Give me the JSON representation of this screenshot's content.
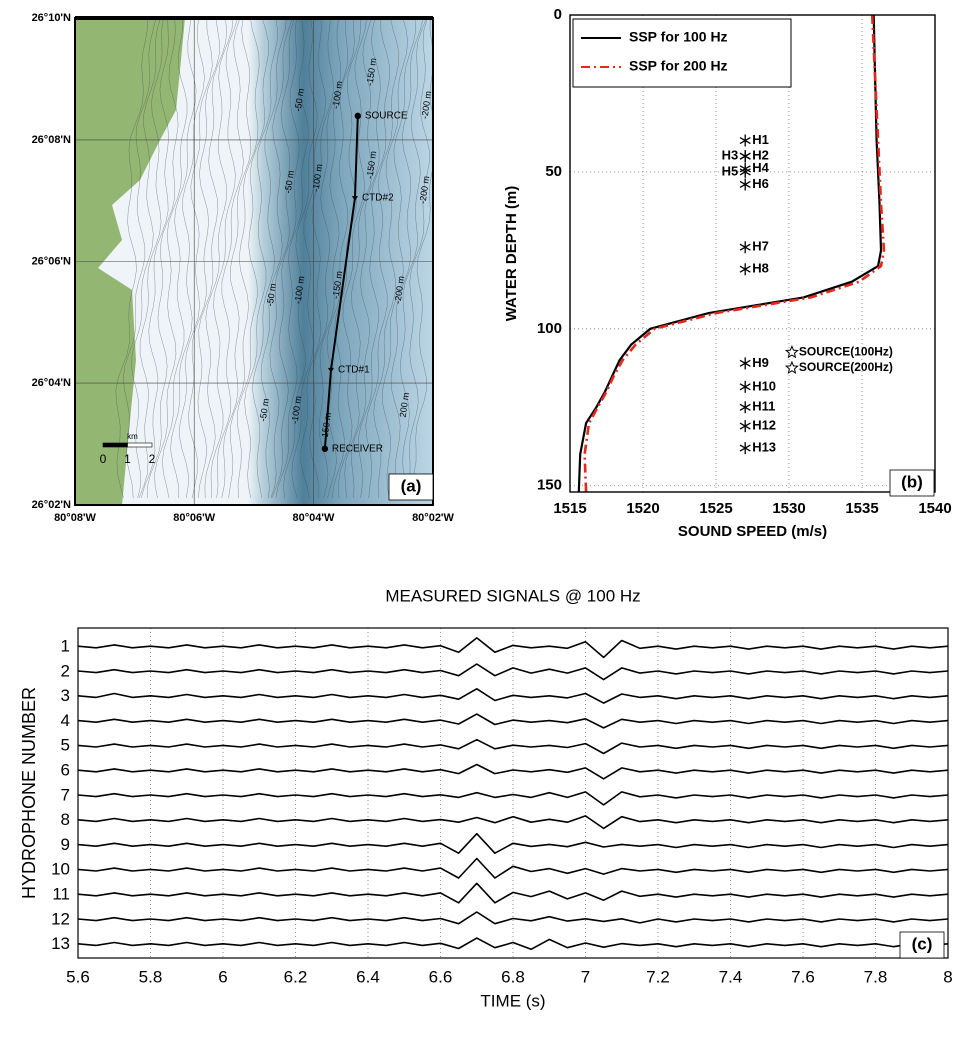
{
  "chart_data": [
    {
      "type": "map",
      "xlim": [
        -80.1333,
        -80.0333
      ],
      "ylim": [
        26.0333,
        26.1667
      ],
      "xticks": [
        {
          "value": -80.1333,
          "label": "80°08'W"
        },
        {
          "value": -80.1,
          "label": "80°06'W"
        },
        {
          "value": -80.0667,
          "label": "80°04'W"
        },
        {
          "value": -80.0333,
          "label": "80°02'W"
        }
      ],
      "yticks": [
        {
          "value": 26.1667,
          "label": "26°10'N"
        },
        {
          "value": 26.1333,
          "label": "26°08'N"
        },
        {
          "value": 26.1,
          "label": "26°06'N"
        },
        {
          "value": 26.0667,
          "label": "26°04'N"
        },
        {
          "value": 26.0333,
          "label": "26°02'N"
        }
      ],
      "grid": true,
      "points": {
        "labels": [
          "SOURCE",
          "CTD#2",
          "CTD#1",
          "RECEIVER"
        ],
        "markers": [
          "circle",
          "triangle",
          "triangle",
          "circle"
        ],
        "x": [
          -80.0543,
          -80.0551,
          -80.0618,
          -80.0635
        ],
        "values": [
          26.1399,
          26.1174,
          26.0703,
          26.0487
        ]
      },
      "contour_labels": [
        "-50 m",
        "-100 m",
        "-150 m",
        "-200 m",
        "-50 m",
        "-100 m",
        "-150 m",
        "-200 m",
        "-50 m",
        "-100 m",
        "-150 m",
        "-200 m",
        "-50 m",
        "-100 m",
        "150 m",
        "200 m"
      ],
      "scale_unit": "km",
      "scale_ticks": [
        0,
        1,
        2
      ],
      "panel_label": "(a)"
    },
    {
      "type": "line",
      "xlabel": "SOUND SPEED (m/s)",
      "ylabel": "WATER DEPTH (m)",
      "xlim": [
        1515,
        1540
      ],
      "xticks": [
        1515,
        1520,
        1525,
        1530,
        1535,
        1540
      ],
      "ylim": [
        0,
        152
      ],
      "yticks": [
        0,
        50,
        100,
        150
      ],
      "y_inverted": true,
      "grid": true,
      "legend": "upper-left",
      "y": [
        0,
        20,
        40,
        60,
        75,
        80,
        85,
        90,
        95,
        100,
        105,
        110,
        115,
        120,
        125,
        130,
        140,
        152
      ],
      "series": [
        {
          "name": "SSP for 100 Hz",
          "color": "#000000",
          "dash": "solid",
          "values": [
            1535.8,
            1535.9,
            1536.0,
            1536.2,
            1536.3,
            1536.1,
            1534.3,
            1531.0,
            1524.5,
            1520.5,
            1519.2,
            1518.4,
            1517.9,
            1517.4,
            1516.8,
            1516.1,
            1515.7,
            1515.6
          ]
        },
        {
          "name": "SSP for 200 Hz",
          "color": "#e8261b",
          "dash": "dashdot",
          "values": [
            1535.7,
            1535.9,
            1536.1,
            1536.3,
            1536.5,
            1536.3,
            1534.8,
            1531.5,
            1525.0,
            1520.8,
            1519.5,
            1518.6,
            1518.0,
            1517.5,
            1516.9,
            1516.3,
            1516.0,
            1516.1
          ]
        }
      ],
      "hydrophones": {
        "labels": [
          "H1",
          "H2",
          "H3",
          "H4",
          "H5",
          "H6",
          "H7",
          "H8",
          "H9",
          "H10",
          "H11",
          "H12",
          "H13"
        ],
        "values": [
          1527,
          1527,
          1527,
          1527,
          1527,
          1527,
          1527,
          1527,
          1527,
          1527,
          1527,
          1527,
          1527
        ],
        "y": [
          40,
          45,
          45,
          49,
          50,
          54,
          74,
          81,
          111,
          118.5,
          125,
          131,
          138
        ]
      },
      "sources": {
        "labels": [
          "SOURCE(100Hz)",
          "SOURCE(200Hz)"
        ],
        "values": [
          1530.2,
          1530.2
        ],
        "y": [
          107.5,
          112.5
        ]
      },
      "panel_label": "(b)"
    },
    {
      "type": "waveform",
      "title": "MEASURED SIGNALS @ 100 Hz",
      "xlabel": "TIME (s)",
      "ylabel": "HYDROPHONE NUMBER",
      "xlim": [
        5.6,
        8
      ],
      "xticks": [
        5.6,
        5.8,
        6,
        6.2,
        6.4,
        6.6,
        6.8,
        7,
        7.2,
        7.4,
        7.6,
        7.8,
        8
      ],
      "grid": true,
      "color": "#000000",
      "categories": [
        "1",
        "2",
        "3",
        "4",
        "5",
        "6",
        "7",
        "8",
        "9",
        "10",
        "11",
        "12",
        "13"
      ],
      "x": [
        5.6,
        5.65,
        5.7,
        5.75,
        5.8,
        5.85,
        5.9,
        5.95,
        6,
        6.05,
        6.1,
        6.15,
        6.2,
        6.25,
        6.3,
        6.35,
        6.4,
        6.45,
        6.5,
        6.55,
        6.6,
        6.65,
        6.7,
        6.75,
        6.8,
        6.85,
        6.9,
        6.95,
        7,
        7.05,
        7.1,
        7.15,
        7.2,
        7.25,
        7.3,
        7.35,
        7.4,
        7.45,
        7.5,
        7.55,
        7.6,
        7.65,
        7.7,
        7.75,
        7.8,
        7.85,
        7.9,
        7.95,
        8
      ],
      "series": [
        {
          "values": [
            0.03,
            0.03,
            0.08,
            0.03,
            0.03,
            0.03,
            0.08,
            0.03,
            0.03,
            0.03,
            0.08,
            0.03,
            0.03,
            0.03,
            0.08,
            0.03,
            0.03,
            0.03,
            0.08,
            0.03,
            0.05,
            0.2,
            0.35,
            0.2,
            0.06,
            0.03,
            0.03,
            0.05,
            0.2,
            0.4,
            0.25,
            0.05,
            0.03,
            0.08,
            0.03,
            0.03,
            0.03,
            0.08,
            0.03,
            0.03,
            0.03,
            0.08,
            0.03,
            0.03,
            0.03,
            0.08,
            0.03,
            0.03,
            0.03
          ]
        },
        {
          "values": [
            0.03,
            0.03,
            0.08,
            0.03,
            0.03,
            0.03,
            0.08,
            0.03,
            0.03,
            0.03,
            0.08,
            0.03,
            0.03,
            0.03,
            0.08,
            0.03,
            0.03,
            0.03,
            0.08,
            0.03,
            0.05,
            0.15,
            0.3,
            0.15,
            0.15,
            0.05,
            0.1,
            0.05,
            0.15,
            0.3,
            0.15,
            0.05,
            0.03,
            0.08,
            0.03,
            0.03,
            0.03,
            0.08,
            0.03,
            0.03,
            0.03,
            0.08,
            0.03,
            0.03,
            0.03,
            0.08,
            0.03,
            0.03,
            0.03
          ]
        },
        {
          "values": [
            0.03,
            0.03,
            0.12,
            0.03,
            0.03,
            0.03,
            0.08,
            0.03,
            0.03,
            0.03,
            0.08,
            0.03,
            0.03,
            0.03,
            0.08,
            0.03,
            0.03,
            0.03,
            0.08,
            0.03,
            0.05,
            0.1,
            0.3,
            0.15,
            0.05,
            0.03,
            0.03,
            0.05,
            0.12,
            0.25,
            0.1,
            0.03,
            0.03,
            0.08,
            0.03,
            0.03,
            0.03,
            0.08,
            0.03,
            0.03,
            0.03,
            0.08,
            0.03,
            0.03,
            0.03,
            0.08,
            0.03,
            0.03,
            0.03
          ]
        },
        {
          "values": [
            0.03,
            0.03,
            0.08,
            0.03,
            0.03,
            0.03,
            0.08,
            0.03,
            0.03,
            0.03,
            0.08,
            0.03,
            0.03,
            0.03,
            0.08,
            0.03,
            0.03,
            0.03,
            0.08,
            0.03,
            0.05,
            0.1,
            0.28,
            0.12,
            0.05,
            0.03,
            0.03,
            0.05,
            0.1,
            0.25,
            0.08,
            0.03,
            0.03,
            0.08,
            0.03,
            0.03,
            0.03,
            0.08,
            0.03,
            0.03,
            0.03,
            0.08,
            0.03,
            0.03,
            0.03,
            0.08,
            0.03,
            0.03,
            0.03
          ]
        },
        {
          "values": [
            0.03,
            0.03,
            0.08,
            0.03,
            0.03,
            0.03,
            0.08,
            0.03,
            0.03,
            0.03,
            0.08,
            0.03,
            0.03,
            0.03,
            0.08,
            0.03,
            0.03,
            0.03,
            0.08,
            0.03,
            0.05,
            0.1,
            0.25,
            0.1,
            0.04,
            0.03,
            0.03,
            0.05,
            0.1,
            0.28,
            0.12,
            0.03,
            0.03,
            0.08,
            0.03,
            0.03,
            0.03,
            0.08,
            0.03,
            0.03,
            0.03,
            0.08,
            0.03,
            0.03,
            0.03,
            0.08,
            0.03,
            0.03,
            0.03
          ]
        },
        {
          "values": [
            0.03,
            0.03,
            0.08,
            0.03,
            0.03,
            0.03,
            0.08,
            0.03,
            0.03,
            0.03,
            0.08,
            0.03,
            0.03,
            0.03,
            0.08,
            0.03,
            0.03,
            0.03,
            0.08,
            0.03,
            0.05,
            0.1,
            0.25,
            0.1,
            0.04,
            0.03,
            0.05,
            0.05,
            0.12,
            0.3,
            0.12,
            0.03,
            0.03,
            0.08,
            0.03,
            0.03,
            0.03,
            0.08,
            0.03,
            0.03,
            0.03,
            0.08,
            0.03,
            0.03,
            0.03,
            0.08,
            0.03,
            0.03,
            0.03
          ]
        },
        {
          "values": [
            0.03,
            0.03,
            0.08,
            0.03,
            0.03,
            0.03,
            0.08,
            0.03,
            0.03,
            0.03,
            0.08,
            0.03,
            0.03,
            0.03,
            0.08,
            0.03,
            0.03,
            0.03,
            0.08,
            0.03,
            0.04,
            0.06,
            0.12,
            0.06,
            0.05,
            0.06,
            0.12,
            0.06,
            0.15,
            0.35,
            0.15,
            0.04,
            0.03,
            0.08,
            0.03,
            0.03,
            0.03,
            0.08,
            0.03,
            0.03,
            0.03,
            0.08,
            0.03,
            0.03,
            0.03,
            0.08,
            0.03,
            0.03,
            0.03
          ]
        },
        {
          "values": [
            0.03,
            0.03,
            0.08,
            0.03,
            0.03,
            0.03,
            0.08,
            0.03,
            0.03,
            0.03,
            0.08,
            0.03,
            0.03,
            0.03,
            0.08,
            0.03,
            0.03,
            0.03,
            0.08,
            0.03,
            0.04,
            0.06,
            0.12,
            0.08,
            0.15,
            0.06,
            0.05,
            0.06,
            0.18,
            0.3,
            0.15,
            0.04,
            0.03,
            0.08,
            0.03,
            0.03,
            0.03,
            0.08,
            0.03,
            0.03,
            0.03,
            0.08,
            0.03,
            0.03,
            0.03,
            0.08,
            0.03,
            0.03,
            0.03
          ]
        },
        {
          "values": [
            0.03,
            0.03,
            0.08,
            0.03,
            0.03,
            0.03,
            0.08,
            0.03,
            0.03,
            0.03,
            0.08,
            0.03,
            0.03,
            0.03,
            0.08,
            0.03,
            0.03,
            0.03,
            0.08,
            0.03,
            0.08,
            0.3,
            0.45,
            0.3,
            0.08,
            0.04,
            0.04,
            0.05,
            0.12,
            0.06,
            0.04,
            0.03,
            0.03,
            0.08,
            0.03,
            0.03,
            0.03,
            0.08,
            0.03,
            0.03,
            0.03,
            0.08,
            0.03,
            0.03,
            0.03,
            0.08,
            0.03,
            0.03,
            0.03
          ]
        },
        {
          "values": [
            0.03,
            0.03,
            0.08,
            0.03,
            0.03,
            0.03,
            0.08,
            0.03,
            0.03,
            0.03,
            0.08,
            0.03,
            0.03,
            0.03,
            0.08,
            0.03,
            0.03,
            0.03,
            0.08,
            0.03,
            0.08,
            0.3,
            0.45,
            0.3,
            0.15,
            0.05,
            0.06,
            0.12,
            0.06,
            0.15,
            0.06,
            0.03,
            0.03,
            0.08,
            0.03,
            0.03,
            0.03,
            0.08,
            0.03,
            0.03,
            0.03,
            0.08,
            0.03,
            0.03,
            0.03,
            0.08,
            0.03,
            0.03,
            0.03
          ]
        },
        {
          "values": [
            0.03,
            0.03,
            0.08,
            0.03,
            0.03,
            0.03,
            0.08,
            0.03,
            0.03,
            0.03,
            0.08,
            0.03,
            0.03,
            0.03,
            0.08,
            0.03,
            0.03,
            0.03,
            0.08,
            0.03,
            0.08,
            0.3,
            0.45,
            0.3,
            0.1,
            0.06,
            0.15,
            0.15,
            0.08,
            0.2,
            0.15,
            0.05,
            0.03,
            0.08,
            0.03,
            0.03,
            0.03,
            0.08,
            0.03,
            0.03,
            0.03,
            0.08,
            0.03,
            0.03,
            0.03,
            0.08,
            0.03,
            0.03,
            0.03
          ]
        },
        {
          "values": [
            0.03,
            0.03,
            0.08,
            0.03,
            0.03,
            0.03,
            0.08,
            0.03,
            0.03,
            0.03,
            0.08,
            0.03,
            0.03,
            0.03,
            0.08,
            0.03,
            0.03,
            0.03,
            0.08,
            0.03,
            0.05,
            0.15,
            0.3,
            0.15,
            0.05,
            0.04,
            0.12,
            0.05,
            0.04,
            0.06,
            0.04,
            0.12,
            0.03,
            0.08,
            0.03,
            0.03,
            0.03,
            0.08,
            0.03,
            0.03,
            0.03,
            0.08,
            0.03,
            0.03,
            0.03,
            0.08,
            0.03,
            0.03,
            0.03
          ]
        },
        {
          "values": [
            0.03,
            0.03,
            0.08,
            0.03,
            0.03,
            0.03,
            0.08,
            0.03,
            0.03,
            0.03,
            0.08,
            0.03,
            0.03,
            0.03,
            0.08,
            0.03,
            0.03,
            0.03,
            0.08,
            0.03,
            0.05,
            0.15,
            0.25,
            0.12,
            0.08,
            0.18,
            0.2,
            0.12,
            0.06,
            0.1,
            0.04,
            0.03,
            0.03,
            0.08,
            0.03,
            0.03,
            0.03,
            0.08,
            0.03,
            0.03,
            0.03,
            0.08,
            0.03,
            0.03,
            0.03,
            0.08,
            0.03,
            0.03,
            0.03
          ]
        }
      ],
      "panel_label": "(c)"
    }
  ]
}
